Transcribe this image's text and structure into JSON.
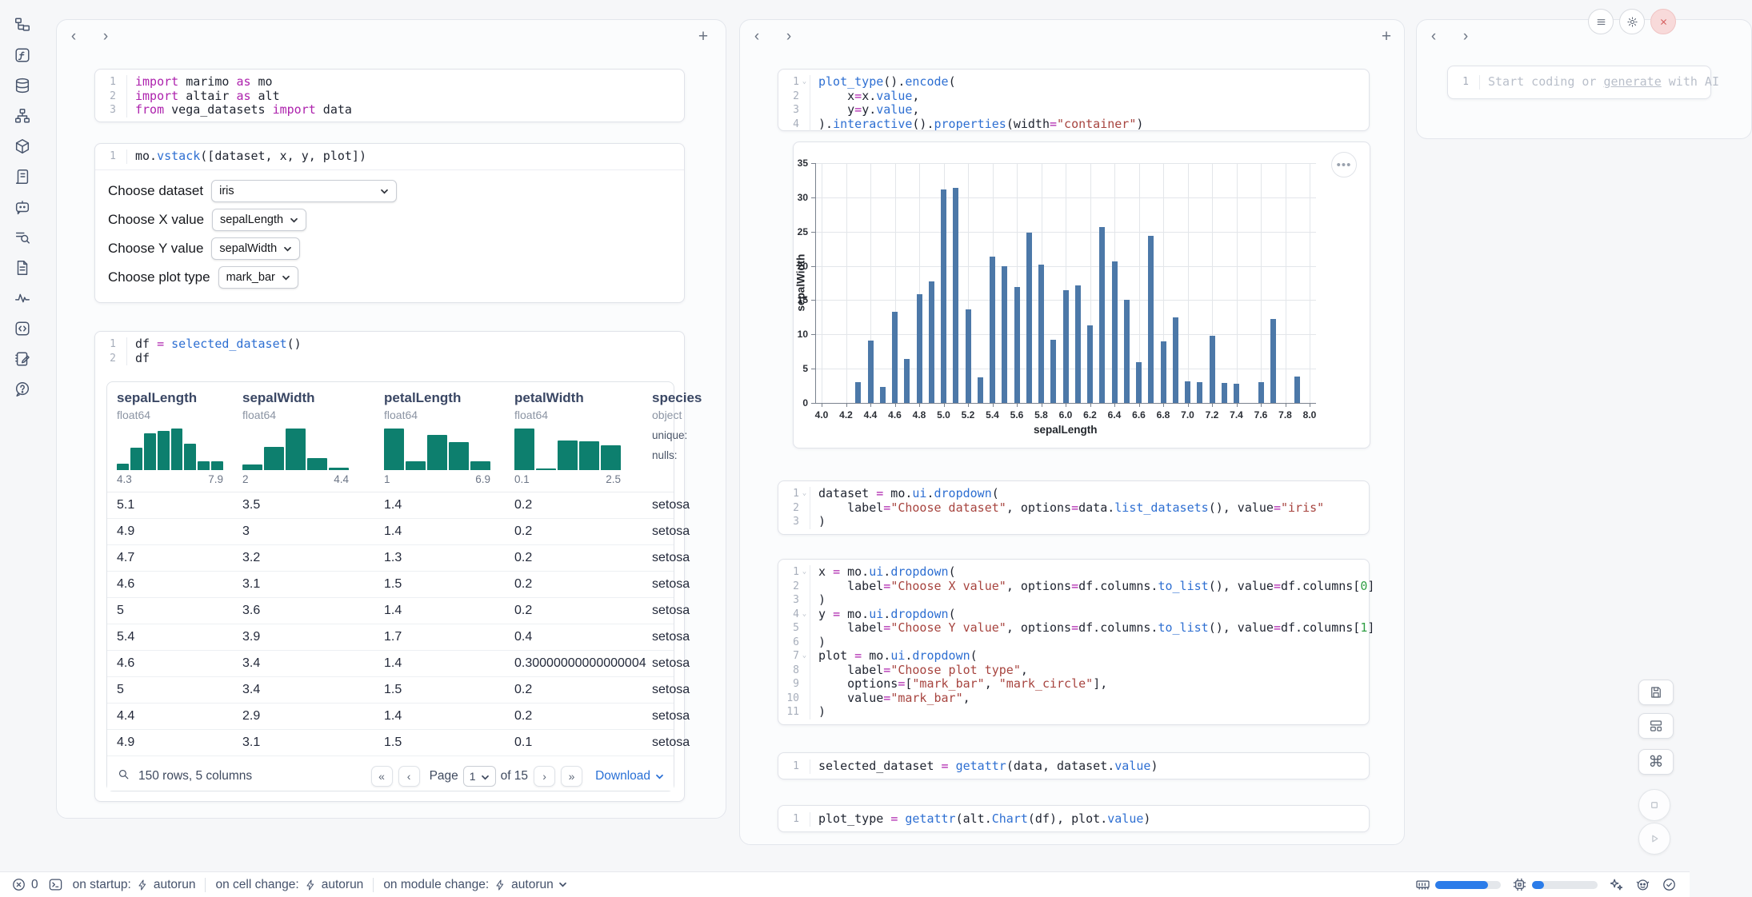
{
  "colors": {
    "accent_blue": "#2b7ce9",
    "bar_blue": "#4c78a8",
    "hist_teal": "#0d7f6e",
    "link_blue": "#2970d6"
  },
  "sidebar": {
    "icons": [
      "file-tree",
      "function-square",
      "database",
      "dependency-graph",
      "package-cube",
      "scroll-script",
      "chat-bot",
      "log-search",
      "document-page",
      "activity-pulse",
      "code-snippets",
      "scratchpad-notebook",
      "help-bubble"
    ]
  },
  "code_cells": {
    "imports": {
      "lines": [
        "import marimo as mo",
        "import altair as alt",
        "from vega_datasets import data"
      ],
      "folds": []
    },
    "vstack": {
      "lines": [
        "mo.vstack([dataset, x, y, plot])"
      ],
      "folds": []
    },
    "df": {
      "lines": [
        "df = selected_dataset()",
        "df"
      ],
      "folds": []
    },
    "plot_encode": {
      "lines": [
        "plot_type().encode(",
        "    x=x.value,",
        "    y=y.value,",
        ").interactive().properties(width=\"container\")"
      ],
      "folds": [
        1
      ]
    },
    "dataset": {
      "lines": [
        "dataset = mo.ui.dropdown(",
        "    label=\"Choose dataset\", options=data.list_datasets(), value=\"iris\"",
        ")"
      ],
      "folds": [
        1
      ]
    },
    "xyplot": {
      "lines": [
        "x = mo.ui.dropdown(",
        "    label=\"Choose X value\", options=df.columns.to_list(), value=df.columns[0]",
        ")",
        "y = mo.ui.dropdown(",
        "    label=\"Choose Y value\", options=df.columns.to_list(), value=df.columns[1]",
        ")",
        "plot = mo.ui.dropdown(",
        "    label=\"Choose plot type\",",
        "    options=[\"mark_bar\", \"mark_circle\"],",
        "    value=\"mark_bar\",",
        ")"
      ],
      "folds": [
        1,
        4,
        7
      ]
    },
    "selected": {
      "lines": [
        "selected_dataset = getattr(data, dataset.value)"
      ],
      "folds": []
    },
    "plottype": {
      "lines": [
        "plot_type = getattr(alt.Chart(df), plot.value)"
      ],
      "folds": []
    }
  },
  "controls": [
    {
      "label": "Choose dataset",
      "value": "iris"
    },
    {
      "label": "Choose X value",
      "value": "sepalLength"
    },
    {
      "label": "Choose Y value",
      "value": "sepalWidth"
    },
    {
      "label": "Choose plot type",
      "value": "mark_bar"
    }
  ],
  "table": {
    "columns": [
      {
        "name": "sepalLength",
        "type": "float64",
        "hist": [
          0.16,
          0.53,
          0.89,
          0.95,
          1.0,
          0.63,
          0.22,
          0.21
        ],
        "range_min": "4.3",
        "range_max": "7.9"
      },
      {
        "name": "sepalWidth",
        "type": "float64",
        "hist": [
          0.13,
          0.55,
          1.0,
          0.28,
          0.05
        ],
        "range_min": "2",
        "range_max": "4.4"
      },
      {
        "name": "petalLength",
        "type": "float64",
        "hist": [
          1.0,
          0.22,
          0.85,
          0.67,
          0.22
        ],
        "range_min": "1",
        "range_max": "6.9"
      },
      {
        "name": "petalWidth",
        "type": "float64",
        "hist": [
          1.0,
          0.04,
          0.72,
          0.7,
          0.6
        ],
        "range_min": "0.1",
        "range_max": "2.5"
      },
      {
        "name": "species",
        "type": "object",
        "summary": [
          "unique:",
          "nulls:"
        ]
      }
    ],
    "rows": [
      [
        "5.1",
        "3.5",
        "1.4",
        "0.2",
        "setosa"
      ],
      [
        "4.9",
        "3",
        "1.4",
        "0.2",
        "setosa"
      ],
      [
        "4.7",
        "3.2",
        "1.3",
        "0.2",
        "setosa"
      ],
      [
        "4.6",
        "3.1",
        "1.5",
        "0.2",
        "setosa"
      ],
      [
        "5",
        "3.6",
        "1.4",
        "0.2",
        "setosa"
      ],
      [
        "5.4",
        "3.9",
        "1.7",
        "0.4",
        "setosa"
      ],
      [
        "4.6",
        "3.4",
        "1.4",
        "0.30000000000000004",
        "setosa"
      ],
      [
        "5",
        "3.4",
        "1.5",
        "0.2",
        "setosa"
      ],
      [
        "4.4",
        "2.9",
        "1.4",
        "0.2",
        "setosa"
      ],
      [
        "4.9",
        "3.1",
        "1.5",
        "0.1",
        "setosa"
      ]
    ],
    "footer": {
      "summary": "150 rows, 5 columns",
      "first": "«",
      "prev": "‹",
      "page_label": "Page",
      "page_value": "1",
      "of_label": "of 15",
      "next": "›",
      "last": "»",
      "download_label": "Download"
    }
  },
  "chart_data": {
    "type": "bar",
    "title": "",
    "xlabel": "sepalLength",
    "ylabel": "sepalWidth",
    "xlim": [
      4.0,
      8.0
    ],
    "ylim": [
      0,
      35
    ],
    "x_tick_step": 0.2,
    "y_tick_step": 5,
    "grid": true,
    "legend": "none",
    "bar_color": "#4c78a8",
    "values": [
      [
        4.3,
        3
      ],
      [
        4.4,
        9.1
      ],
      [
        4.5,
        2.3
      ],
      [
        4.6,
        13.3
      ],
      [
        4.7,
        6.4
      ],
      [
        4.8,
        15.9
      ],
      [
        4.9,
        17.7
      ],
      [
        5.0,
        31.2
      ],
      [
        5.1,
        31.4
      ],
      [
        5.2,
        13.7
      ],
      [
        5.3,
        3.7
      ],
      [
        5.4,
        21.4
      ],
      [
        5.5,
        20
      ],
      [
        5.6,
        16.9
      ],
      [
        5.7,
        24.9
      ],
      [
        5.8,
        20.2
      ],
      [
        5.9,
        9.2
      ],
      [
        6.0,
        16.4
      ],
      [
        6.1,
        17.1
      ],
      [
        6.2,
        11.3
      ],
      [
        6.3,
        25.7
      ],
      [
        6.4,
        20.7
      ],
      [
        6.5,
        15
      ],
      [
        6.6,
        6
      ],
      [
        6.7,
        24.4
      ],
      [
        6.8,
        9
      ],
      [
        6.9,
        12.5
      ],
      [
        7.0,
        3.2
      ],
      [
        7.1,
        3
      ],
      [
        7.2,
        9.8
      ],
      [
        7.3,
        2.9
      ],
      [
        7.4,
        2.8
      ],
      [
        7.6,
        3
      ],
      [
        7.7,
        12.2
      ],
      [
        7.9,
        3.8
      ]
    ]
  },
  "empty_cell": {
    "gutter": "1",
    "placeholder_prefix": "Start coding or ",
    "placeholder_link": "generate",
    "placeholder_suffix": " with AI"
  },
  "statusbar": {
    "error_count": "0",
    "runtime_items": [
      {
        "label": "on startup:",
        "value": "autorun",
        "caret": false
      },
      {
        "label": "on cell change:",
        "value": "autorun",
        "caret": false
      },
      {
        "label": "on module change:",
        "value": "autorun",
        "caret": true
      }
    ],
    "ram_pct": 80,
    "cpu_pct": 18
  }
}
